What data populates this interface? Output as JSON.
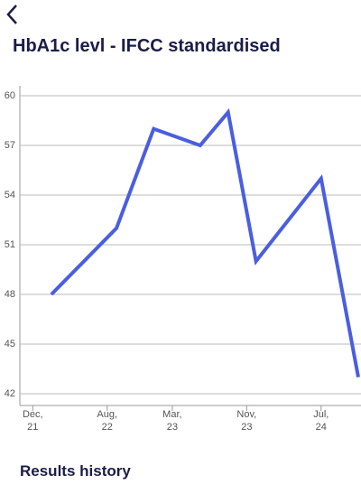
{
  "chart_data": {
    "type": "line",
    "title": "HbA1c levl - IFCC standardised",
    "x": [
      "2022-02",
      "2022-09",
      "2023-01",
      "2023-06",
      "2023-09",
      "2023-12",
      "2024-07",
      "2024-11"
    ],
    "series": [
      {
        "name": "HbA1c",
        "color": "#4a5ee0",
        "values": [
          48,
          52,
          58,
          57,
          59,
          50,
          55,
          43
        ]
      }
    ],
    "xlim": [
      "2021-11",
      "2024-11"
    ],
    "xticks": [
      {
        "value": "2021-12",
        "label": "Dec,\n21"
      },
      {
        "value": "2022-08",
        "label": "Aug,\n22"
      },
      {
        "value": "2023-03",
        "label": "Mar,\n23"
      },
      {
        "value": "2023-11",
        "label": "Nov,\n23"
      },
      {
        "value": "2024-07",
        "label": "Jul,\n24"
      }
    ],
    "ylim": [
      42,
      60
    ],
    "yticks": [
      42,
      45,
      48,
      51,
      54,
      57,
      60
    ],
    "grid": true
  },
  "section_heading": "Results history"
}
